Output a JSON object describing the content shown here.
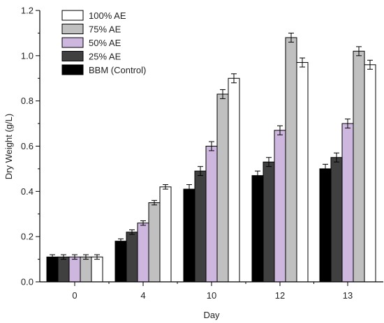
{
  "chart_data": {
    "type": "bar",
    "xlabel": "Day",
    "ylabel": "Dry Weight (g/L)",
    "categories": [
      "0",
      "4",
      "10",
      "12",
      "13"
    ],
    "ylim": [
      0,
      1.2
    ],
    "yticks": [
      "0.0",
      "0.2",
      "0.4",
      "0.6",
      "0.8",
      "1.0",
      "1.2"
    ],
    "grid": false,
    "legend_position": "top-left",
    "series": [
      {
        "name": "BBM (Control)",
        "color": "#000000",
        "values": [
          0.11,
          0.18,
          0.41,
          0.47,
          0.5
        ],
        "errors": [
          0.01,
          0.01,
          0.02,
          0.02,
          0.02
        ]
      },
      {
        "name": "25% AE",
        "color": "#404040",
        "values": [
          0.11,
          0.22,
          0.49,
          0.53,
          0.55
        ],
        "errors": [
          0.01,
          0.01,
          0.02,
          0.02,
          0.02
        ]
      },
      {
        "name": "50% AE",
        "color": "#cdb7de",
        "values": [
          0.11,
          0.26,
          0.6,
          0.67,
          0.7
        ],
        "errors": [
          0.01,
          0.01,
          0.02,
          0.02,
          0.02
        ]
      },
      {
        "name": "75% AE",
        "color": "#c0c0c0",
        "values": [
          0.11,
          0.35,
          0.83,
          1.08,
          1.02
        ],
        "errors": [
          0.01,
          0.01,
          0.02,
          0.02,
          0.02
        ]
      },
      {
        "name": "100% AE",
        "color": "#ffffff",
        "values": [
          0.11,
          0.42,
          0.9,
          0.97,
          0.96
        ],
        "errors": [
          0.01,
          0.01,
          0.02,
          0.02,
          0.02
        ]
      }
    ]
  }
}
